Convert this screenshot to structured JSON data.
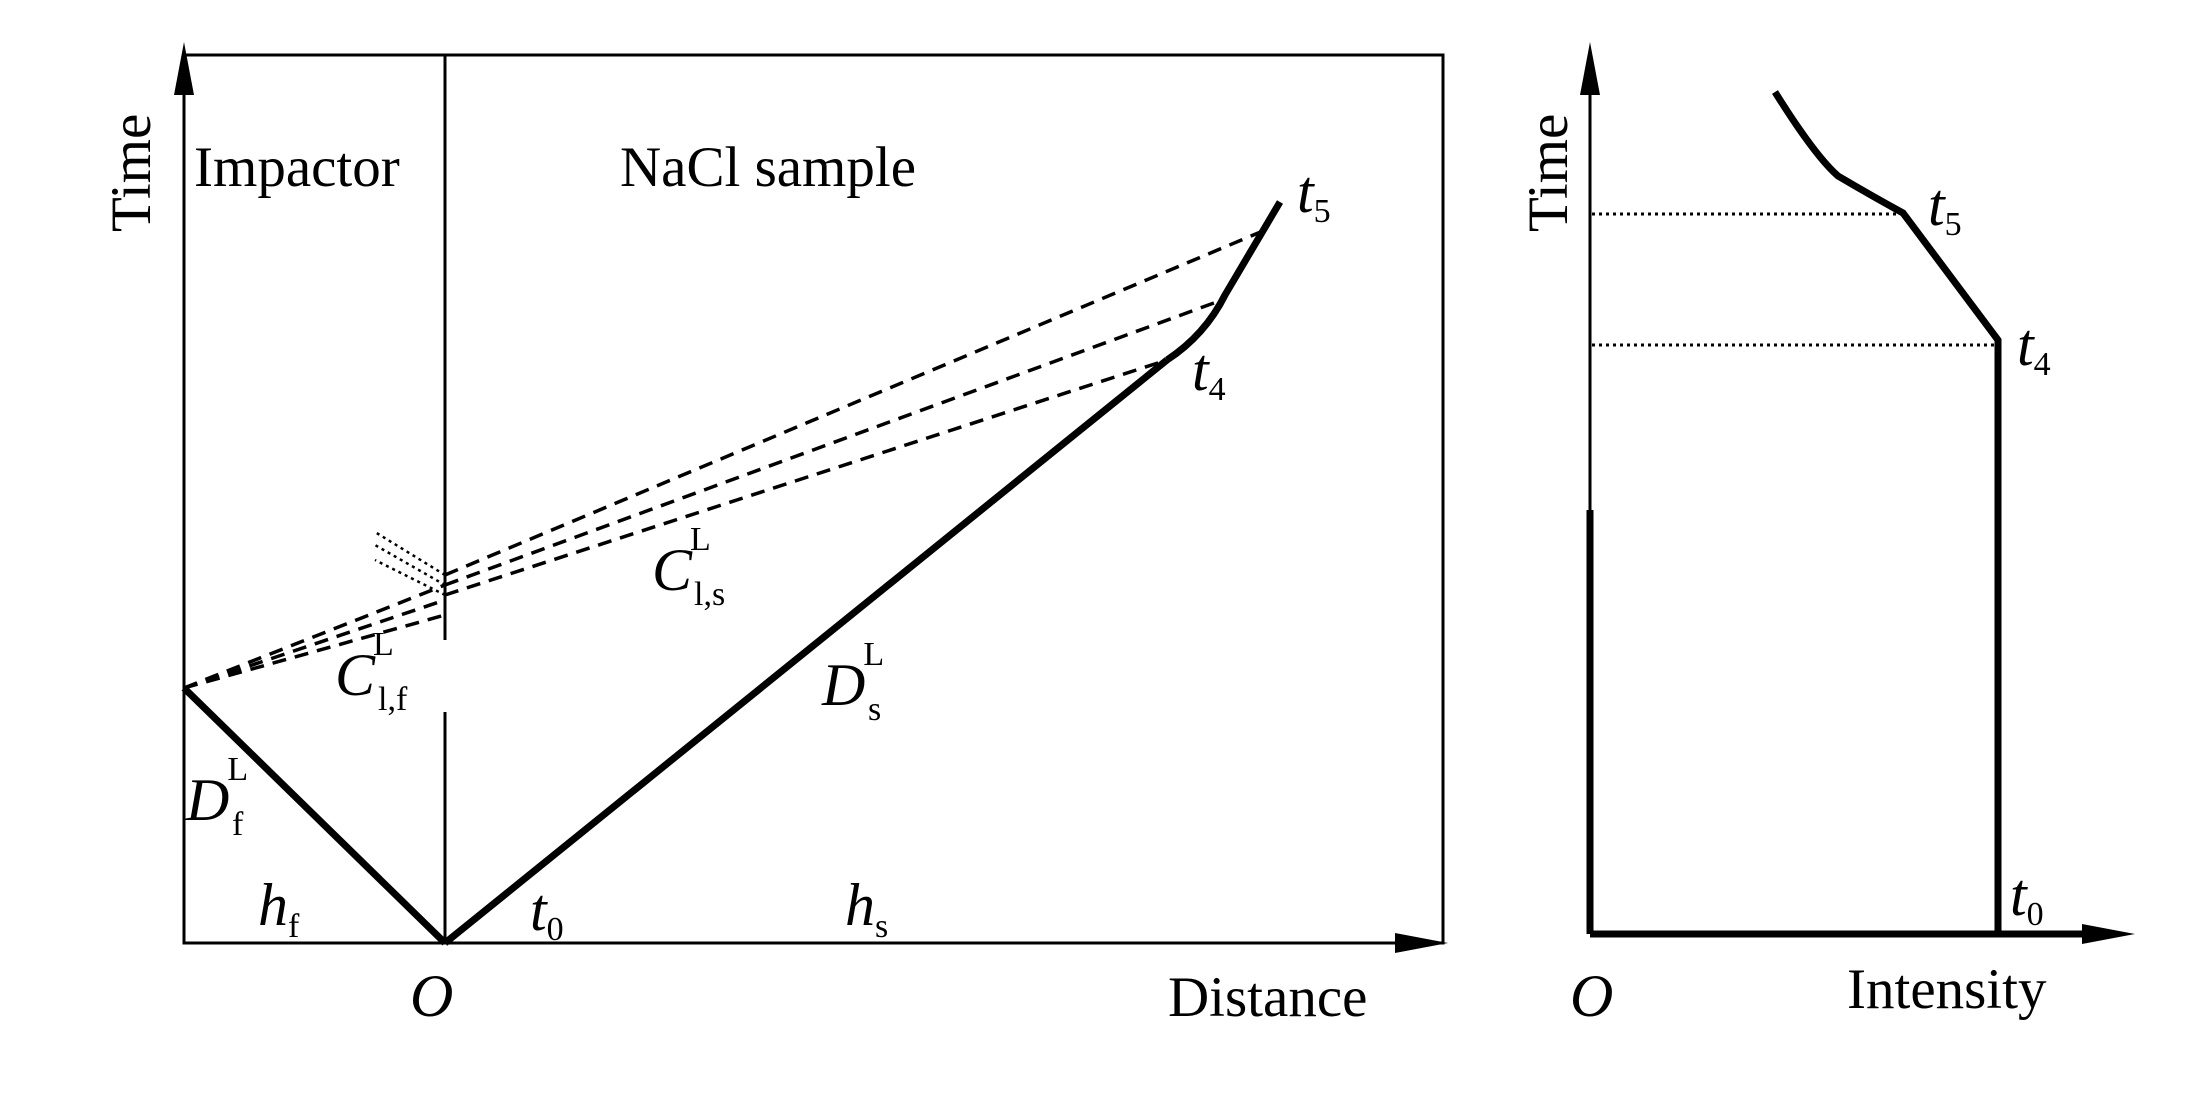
{
  "left_panel": {
    "y_axis_label": "Time",
    "x_axis_label": "Distance",
    "origin_label": "O",
    "region_impactor": "Impactor",
    "region_sample": "NaCl sample",
    "time_labels": {
      "t0": {
        "base": "t",
        "sub": "0"
      },
      "t4": {
        "base": "t",
        "sub": "4"
      },
      "t5": {
        "base": "t",
        "sub": "5"
      }
    },
    "wave_labels": {
      "D_f": {
        "base": "D",
        "sub": "f",
        "sup": "L"
      },
      "D_s": {
        "base": "D",
        "sub": "s",
        "sup": "L"
      },
      "C_lf": {
        "base": "C",
        "sub": "l,f",
        "sup": "L"
      },
      "C_ls": {
        "base": "C",
        "sub": "l,s",
        "sup": "L"
      }
    },
    "thickness_labels": {
      "h_f": {
        "base": "h",
        "sub": "f"
      },
      "h_s": {
        "base": "h",
        "sub": "s"
      }
    }
  },
  "right_panel": {
    "y_axis_label": "Time",
    "x_axis_label": "Intensity",
    "origin_label": "O",
    "time_labels": {
      "t0": {
        "base": "t",
        "sub": "0"
      },
      "t4": {
        "base": "t",
        "sub": "4"
      },
      "t5": {
        "base": "t",
        "sub": "5"
      }
    }
  },
  "style": {
    "line_color": "#000000",
    "background": "#ffffff"
  }
}
